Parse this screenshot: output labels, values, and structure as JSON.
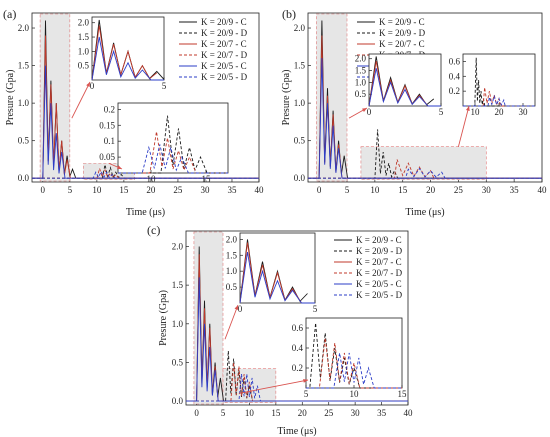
{
  "figure": {
    "panel_labels": [
      "(a)",
      "(b)",
      "(c)"
    ]
  },
  "chart_data": [
    {
      "panel": "(a)",
      "type": "line",
      "xlabel": "Time (μs)",
      "ylabel": "Presure (Gpa)",
      "xlim": [
        -2,
        40
      ],
      "ylim": [
        -0.05,
        2.2
      ],
      "xticks": [
        0,
        5,
        10,
        15,
        20,
        25,
        30,
        35,
        40
      ],
      "yticks": [
        0.0,
        0.5,
        1.0,
        1.5,
        2.0
      ],
      "legend_position": "top-right",
      "series": [
        {
          "name": "K = 20/9 - C",
          "color": "#1a1a1a",
          "dash": "solid",
          "peaks": [
            [
              0.5,
              2.1
            ],
            [
              1.5,
              1.3
            ],
            [
              2.5,
              1.0
            ],
            [
              3.5,
              0.5
            ],
            [
              4.5,
              0.3
            ],
            [
              5.5,
              0.12
            ]
          ]
        },
        {
          "name": "K = 20/9 - D",
          "color": "#1a1a1a",
          "dash": "dashed",
          "peaks": [
            [
              11.5,
              0.18
            ],
            [
              12.5,
              0.14
            ],
            [
              13.5,
              0.08
            ],
            [
              14.5,
              0.05
            ]
          ]
        },
        {
          "name": "K = 20/7 - C",
          "color": "#c0392b",
          "dash": "solid",
          "peaks": [
            [
              0.5,
              1.9
            ],
            [
              1.5,
              1.25
            ],
            [
              2.5,
              1.0
            ],
            [
              3.5,
              0.5
            ],
            [
              4.5,
              0.25
            ]
          ]
        },
        {
          "name": "K = 20/7 - D",
          "color": "#c0392b",
          "dash": "dashed",
          "peaks": [
            [
              10.5,
              0.13
            ],
            [
              11.5,
              0.11
            ],
            [
              12.5,
              0.07
            ],
            [
              13.5,
              0.05
            ]
          ]
        },
        {
          "name": "K = 20/5 - C",
          "color": "#2b3cc7",
          "dash": "solid",
          "peaks": [
            [
              0.5,
              1.5
            ],
            [
              1.5,
              1.0
            ],
            [
              2.5,
              0.6
            ],
            [
              3.5,
              0.35
            ]
          ]
        },
        {
          "name": "K = 20/5 - D",
          "color": "#2b3cc7",
          "dash": "dashed",
          "peaks": [
            [
              9.8,
              0.08
            ],
            [
              10.8,
              0.09
            ],
            [
              11.8,
              0.08
            ],
            [
              12.8,
              0.05
            ]
          ]
        }
      ],
      "insets": [
        {
          "xlim": [
            0,
            5
          ],
          "ylim": [
            0,
            2.2
          ],
          "xticks": [
            0,
            5
          ],
          "yticks": [
            0.5,
            1.0,
            1.5,
            2.0
          ]
        },
        {
          "xlim": [
            7,
            17
          ],
          "ylim": [
            0,
            0.22
          ],
          "xticks": [
            10,
            15
          ],
          "yticks": [
            0.05,
            0.1,
            0.15,
            0.2
          ]
        }
      ]
    },
    {
      "panel": "(b)",
      "type": "line",
      "xlabel": "Time (μs)",
      "ylabel": "Presure (Gpa)",
      "xlim": [
        -2,
        40
      ],
      "ylim": [
        -0.05,
        2.2
      ],
      "xticks": [
        0,
        5,
        10,
        15,
        20,
        25,
        30,
        35,
        40
      ],
      "yticks": [
        0.0,
        0.5,
        1.0,
        1.5,
        2.0
      ],
      "legend_position": "top-right",
      "series": [
        {
          "name": "K = 20/9 - C",
          "color": "#1a1a1a",
          "dash": "solid",
          "peaks": [
            [
              0.5,
              2.1
            ],
            [
              1.5,
              1.2
            ],
            [
              2.5,
              0.9
            ],
            [
              3.5,
              0.5
            ],
            [
              4.5,
              0.3
            ]
          ]
        },
        {
          "name": "K = 20/9 - D",
          "color": "#1a1a1a",
          "dash": "dashed",
          "peaks": [
            [
              10.5,
              0.65
            ],
            [
              11.5,
              0.35
            ],
            [
              12.5,
              0.2
            ],
            [
              13.5,
              0.1
            ]
          ]
        },
        {
          "name": "K = 20/7 - C",
          "color": "#c0392b",
          "dash": "solid",
          "peaks": [
            [
              0.5,
              1.9
            ],
            [
              1.5,
              1.1
            ],
            [
              2.5,
              0.85
            ],
            [
              3.5,
              0.45
            ]
          ]
        },
        {
          "name": "K = 20/7 - D",
          "color": "#c0392b",
          "dash": "dashed",
          "peaks": [
            [
              14,
              0.25
            ],
            [
              16,
              0.2
            ],
            [
              18,
              0.15
            ],
            [
              20,
              0.1
            ]
          ]
        },
        {
          "name": "K = 20/5 - C",
          "color": "#2b3cc7",
          "dash": "solid",
          "peaks": [
            [
              0.5,
              1.6
            ],
            [
              1.5,
              1.0
            ],
            [
              2.5,
              0.7
            ],
            [
              3.5,
              0.4
            ]
          ]
        },
        {
          "name": "K = 20/5 - D",
          "color": "#2b3cc7",
          "dash": "dashed",
          "peaks": [
            [
              16,
              0.12
            ],
            [
              18,
              0.13
            ],
            [
              20,
              0.1
            ],
            [
              22,
              0.08
            ]
          ]
        }
      ],
      "insets": [
        {
          "xlim": [
            0,
            5
          ],
          "ylim": [
            0,
            2.2
          ],
          "xticks": [
            0,
            5
          ],
          "yticks": [
            0.5,
            1.0,
            1.5,
            2.0
          ]
        },
        {
          "xlim": [
            5,
            35
          ],
          "ylim": [
            0,
            0.7
          ],
          "xticks": [
            10,
            20,
            30
          ],
          "yticks": [
            0.2,
            0.4,
            0.6
          ]
        }
      ]
    },
    {
      "panel": "(c)",
      "type": "line",
      "xlabel": "Time (μs)",
      "ylabel": "Presure (Gpa)",
      "xlim": [
        -2,
        40
      ],
      "ylim": [
        -0.05,
        2.2
      ],
      "xticks": [
        0,
        5,
        10,
        15,
        20,
        25,
        30,
        35,
        40
      ],
      "yticks": [
        0.0,
        0.5,
        1.0,
        1.5,
        2.0
      ],
      "legend_position": "top-right",
      "series": [
        {
          "name": "K = 20/9 - C",
          "color": "#1a1a1a",
          "dash": "solid",
          "peaks": [
            [
              0.5,
              2.0
            ],
            [
              1.5,
              1.3
            ],
            [
              2.5,
              1.0
            ],
            [
              3.5,
              0.5
            ],
            [
              4.5,
              0.3
            ]
          ]
        },
        {
          "name": "K = 20/9 - D",
          "color": "#1a1a1a",
          "dash": "dashed",
          "peaks": [
            [
              6,
              0.65
            ],
            [
              7,
              0.55
            ],
            [
              8,
              0.4
            ],
            [
              9,
              0.3
            ],
            [
              10,
              0.2
            ]
          ]
        },
        {
          "name": "K = 20/7 - C",
          "color": "#c0392b",
          "dash": "solid",
          "peaks": [
            [
              0.5,
              1.9
            ],
            [
              1.5,
              1.2
            ],
            [
              2.5,
              0.95
            ],
            [
              3.5,
              0.45
            ]
          ]
        },
        {
          "name": "K = 20/7 - D",
          "color": "#c0392b",
          "dash": "dashed",
          "peaks": [
            [
              7,
              0.5
            ],
            [
              8,
              0.45
            ],
            [
              9,
              0.35
            ],
            [
              10,
              0.25
            ]
          ]
        },
        {
          "name": "K = 20/5 - C",
          "color": "#2b3cc7",
          "dash": "solid",
          "peaks": [
            [
              0.5,
              1.6
            ],
            [
              1.5,
              1.0
            ],
            [
              2.5,
              0.7
            ],
            [
              3.5,
              0.4
            ]
          ]
        },
        {
          "name": "K = 20/5 - D",
          "color": "#2b3cc7",
          "dash": "dashed",
          "peaks": [
            [
              8.5,
              0.35
            ],
            [
              9.5,
              0.35
            ],
            [
              10.5,
              0.3
            ],
            [
              11.5,
              0.2
            ]
          ]
        }
      ],
      "insets": [
        {
          "xlim": [
            0,
            5
          ],
          "ylim": [
            0,
            2.2
          ],
          "xticks": [
            0,
            5
          ],
          "yticks": [
            0.5,
            1.0,
            1.5,
            2.0
          ]
        },
        {
          "xlim": [
            5,
            15
          ],
          "ylim": [
            0,
            0.7
          ],
          "xticks": [
            5,
            10,
            15
          ],
          "yticks": [
            0.2,
            0.4,
            0.6
          ]
        }
      ]
    }
  ]
}
